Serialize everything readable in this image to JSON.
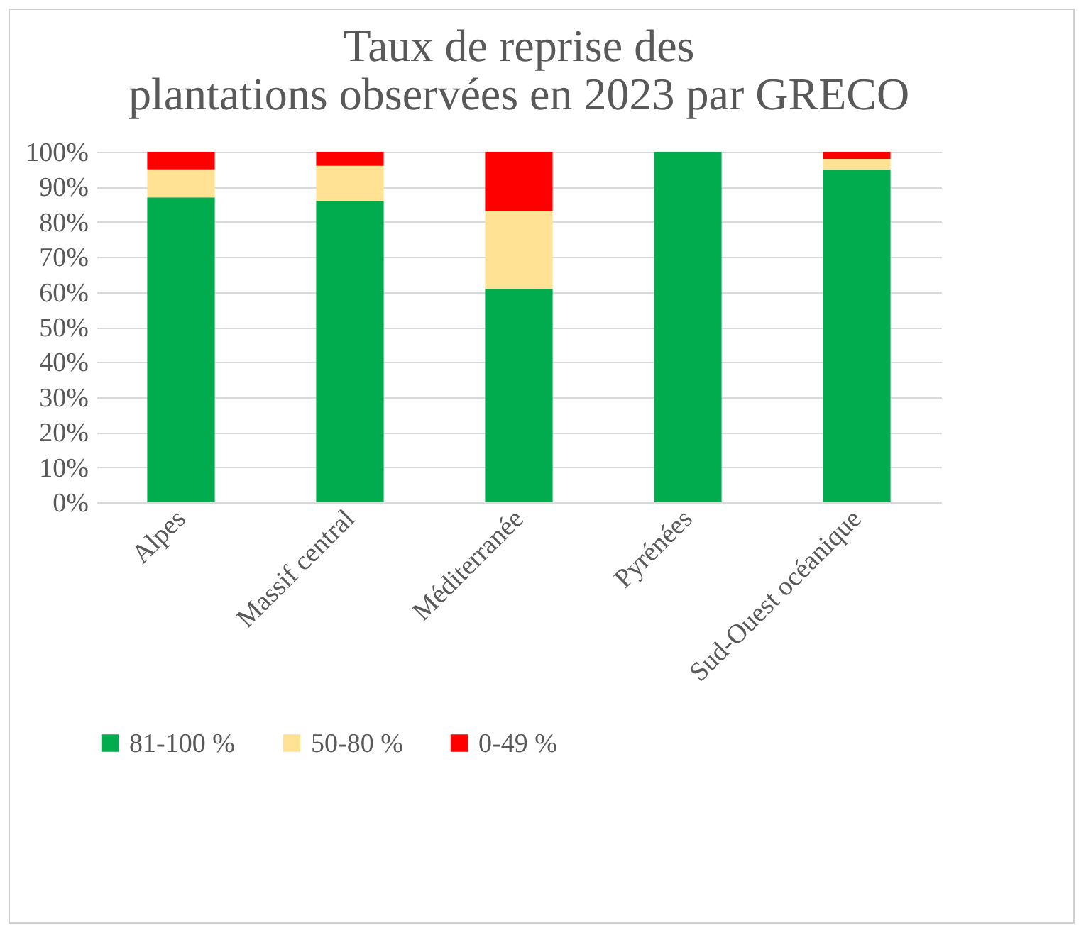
{
  "chart_data": {
    "type": "bar",
    "title": "Taux de reprise des plantations observées en 2023 par GRECO",
    "stacked": true,
    "categories": [
      "Alpes",
      "Massif central",
      "Méditerranée",
      "Pyrénées",
      "Sud-Ouest océanique"
    ],
    "series": [
      {
        "name": "81-100 %",
        "color": "#00ac4e",
        "values": [
          87,
          86,
          61,
          100,
          95
        ]
      },
      {
        "name": "50-80 %",
        "color": "#ffe293",
        "values": [
          8,
          10,
          22,
          0,
          3
        ]
      },
      {
        "name": "0-49 %",
        "color": "#ff0000",
        "values": [
          5,
          4,
          17,
          0,
          2
        ]
      }
    ],
    "ylim": [
      0,
      100
    ],
    "yticks": [
      {
        "value": 0,
        "label": "0%"
      },
      {
        "value": 10,
        "label": "10%"
      },
      {
        "value": 20,
        "label": "20%"
      },
      {
        "value": 30,
        "label": "30%"
      },
      {
        "value": 40,
        "label": "40%"
      },
      {
        "value": 50,
        "label": "50%"
      },
      {
        "value": 60,
        "label": "60%"
      },
      {
        "value": 70,
        "label": "70%"
      },
      {
        "value": 80,
        "label": "80%"
      },
      {
        "value": 90,
        "label": "90%"
      },
      {
        "value": 100,
        "label": "100%"
      }
    ],
    "grid": "y",
    "legend": "bottom"
  }
}
